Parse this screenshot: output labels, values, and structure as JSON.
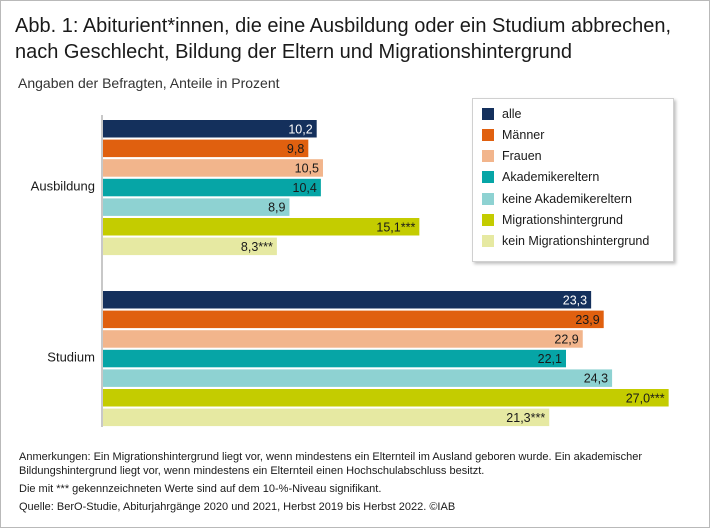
{
  "figure": {
    "title_line1": "Abb. 1: Abiturient*innen, die eine Ausbildung oder ein Studium abbrechen,",
    "title_line2": "nach Geschlecht, Bildung der Eltern und Migrationshintergrund",
    "subtitle": "Angaben der Befragten, Anteile in Prozent"
  },
  "chart_data": {
    "type": "bar",
    "orientation": "horizontal",
    "categories": [
      "Ausbildung",
      "Studium"
    ],
    "xlim": [
      0,
      28
    ],
    "series": [
      {
        "name": "alle",
        "color": "#14305c",
        "values": [
          10.2,
          23.3
        ],
        "labels": [
          "10,2",
          "23,3"
        ],
        "label_color": "#ffffff"
      },
      {
        "name": "Männer",
        "color": "#e0600f",
        "values": [
          9.8,
          23.9
        ],
        "labels": [
          "9,8",
          "23,9"
        ],
        "label_color": "#1a1a1a"
      },
      {
        "name": "Frauen",
        "color": "#f2b58c",
        "values": [
          10.5,
          22.9
        ],
        "labels": [
          "10,5",
          "22,9"
        ],
        "label_color": "#1a1a1a"
      },
      {
        "name": "Akademikereltern",
        "color": "#06a5a6",
        "values": [
          10.4,
          22.1
        ],
        "labels": [
          "10,4",
          "22,1"
        ],
        "label_color": "#1a1a1a"
      },
      {
        "name": "keine Akademikereltern",
        "color": "#8ed2d2",
        "values": [
          8.9,
          24.3
        ],
        "labels": [
          "8,9",
          "24,3"
        ],
        "label_color": "#1a1a1a"
      },
      {
        "name": "Migrationshintergrund",
        "color": "#c4cc00",
        "values": [
          15.1,
          27.0
        ],
        "labels": [
          "15,1***",
          "27,0***"
        ],
        "label_color": "#1a1a1a"
      },
      {
        "name": "kein Migrationshintergrund",
        "color": "#e6e9a2",
        "values": [
          8.3,
          21.3
        ],
        "labels": [
          "8,3***",
          "21,3***"
        ],
        "label_color": "#1a1a1a"
      }
    ],
    "legend_position": "top-right"
  },
  "notes": {
    "line1": "Anmerkungen: Ein Migrationshintergrund liegt vor, wenn mindestens ein Elternteil im Ausland geboren wurde. Ein akademischer",
    "line2": "Bildungshintergrund liegt vor, wenn mindestens ein Elternteil einen Hochschulabschluss besitzt.",
    "line3": "Die mit *** gekennzeichneten Werte sind auf dem 10-%-Niveau signifikant.",
    "line4": "Quelle: BerO-Studie, Abiturjahrgänge 2020 und 2021, Herbst 2019 bis Herbst 2022.  ©IAB"
  }
}
